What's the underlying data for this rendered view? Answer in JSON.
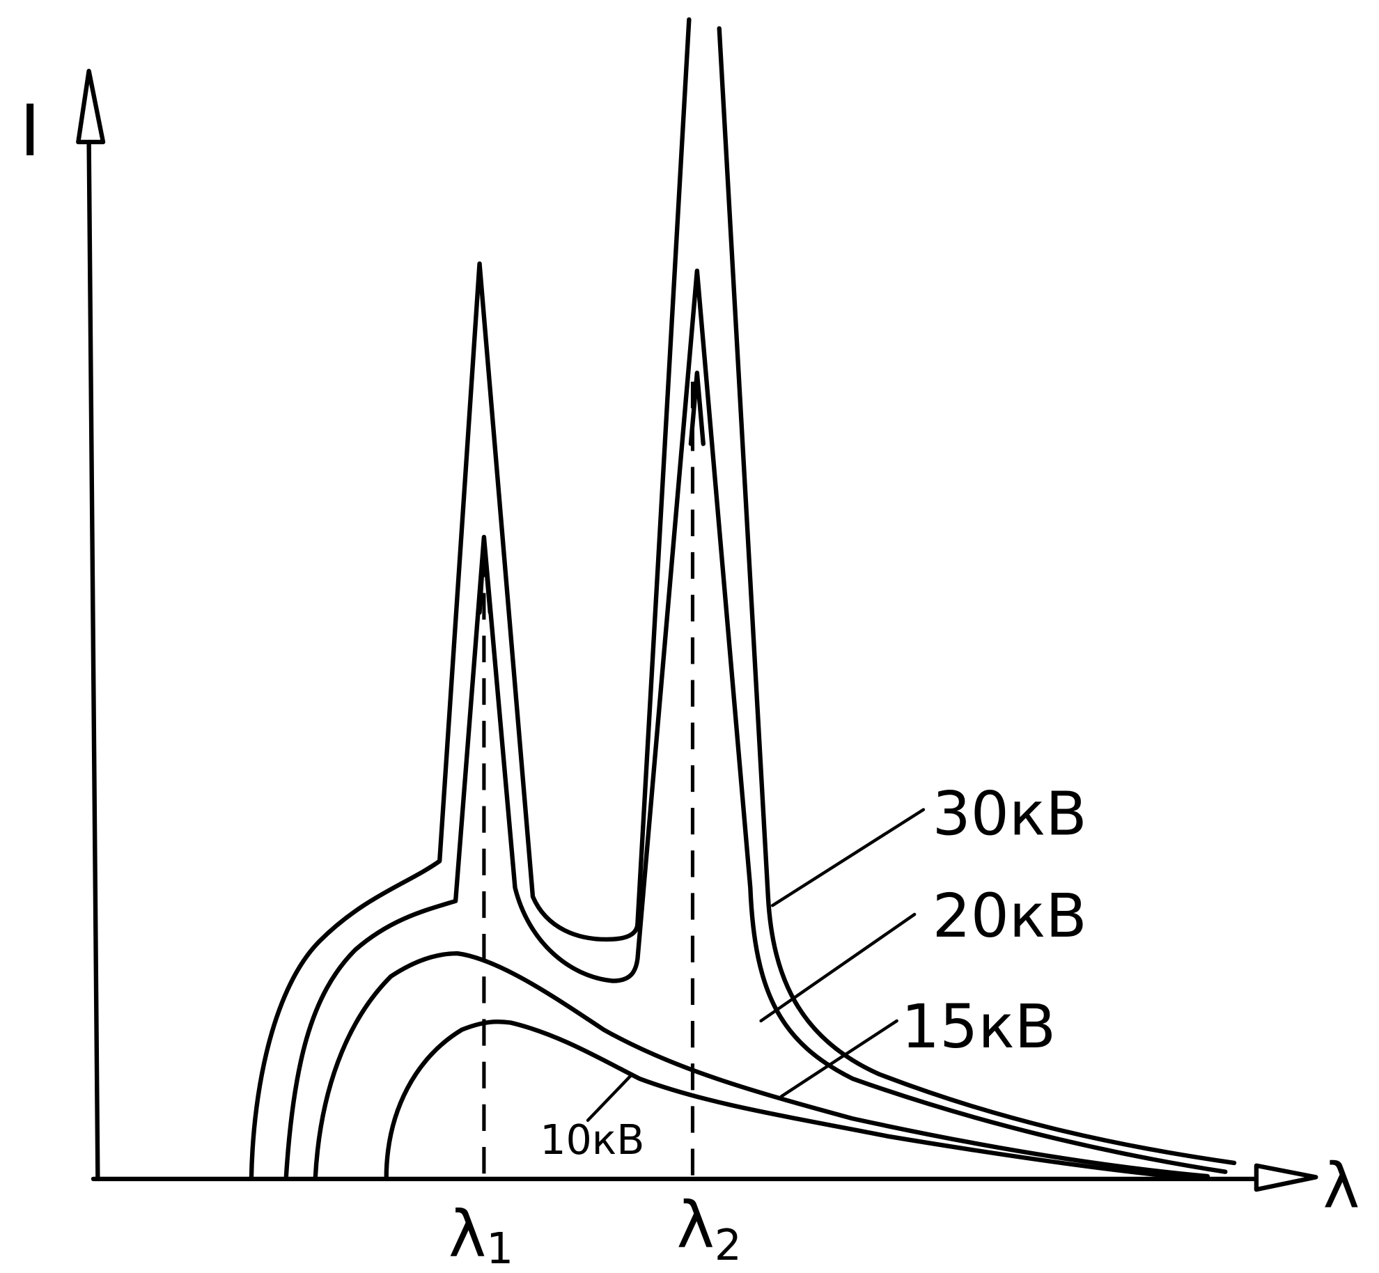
{
  "axes": {
    "y_label": "I",
    "x_label": "λ"
  },
  "markers": [
    {
      "symbol": "λ",
      "subscript": "1"
    },
    {
      "symbol": "λ",
      "subscript": "2"
    }
  ],
  "curves": [
    {
      "label": "30кВ"
    },
    {
      "label": "20кВ"
    },
    {
      "label": "15кВ"
    },
    {
      "label": "10кВ"
    }
  ]
}
